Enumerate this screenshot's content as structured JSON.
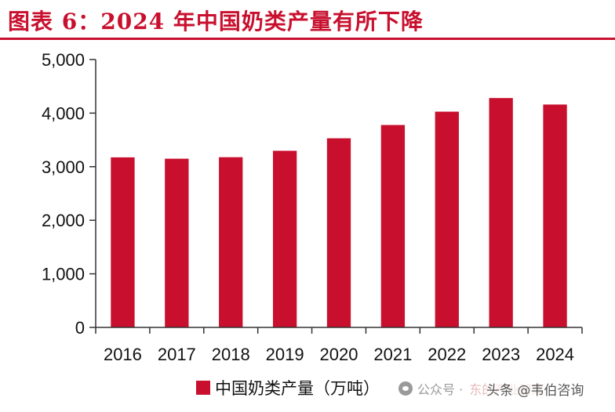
{
  "title": "图表 6：2024 年中国奶类产量有所下降",
  "chart_data": {
    "type": "bar",
    "categories": [
      "2016",
      "2017",
      "2018",
      "2019",
      "2020",
      "2021",
      "2022",
      "2023",
      "2024"
    ],
    "series": [
      {
        "name": "中国奶类产量（万吨）",
        "values": [
          3174,
          3149,
          3177,
          3297,
          3530,
          3778,
          4027,
          4281,
          4160
        ]
      }
    ],
    "ylim": [
      0,
      5000
    ],
    "yticks": [
      "0",
      "1,000",
      "2,000",
      "3,000",
      "4,000",
      "5,000"
    ],
    "yticks_values": [
      0,
      1000,
      2000,
      3000,
      4000,
      5000
    ],
    "grid": false,
    "legend_position": "bottom",
    "bar_color": "#c8102e"
  },
  "watermark": {
    "icon": "wechat-icon",
    "prefix": "公众号 ·",
    "faded": "东的产业智库",
    "toutiao": "头条 @韦伯咨询"
  }
}
